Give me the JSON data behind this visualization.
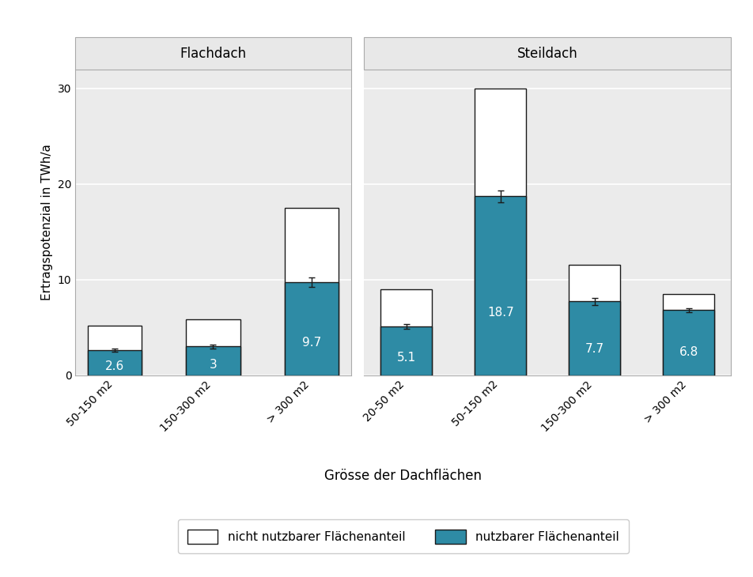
{
  "facets": [
    "Flachdach",
    "Steildach"
  ],
  "flachdach": {
    "categories": [
      "50-150 m2",
      "150-300 m2",
      "> 300 m2"
    ],
    "total": [
      5.2,
      5.8,
      17.5
    ],
    "usable": [
      2.6,
      3.0,
      9.7
    ],
    "error": [
      0.15,
      0.2,
      0.5
    ]
  },
  "steildach": {
    "categories": [
      "20-50 m2",
      "50-150 m2",
      "150-300 m2",
      "> 300 m2"
    ],
    "total": [
      9.0,
      30.0,
      11.5,
      8.5
    ],
    "usable": [
      5.1,
      18.7,
      7.7,
      6.8
    ],
    "error": [
      0.25,
      0.6,
      0.35,
      0.2
    ]
  },
  "bar_color_usable": "#2e8ba5",
  "bar_color_total": "#ffffff",
  "bar_edgecolor": "#1a1a1a",
  "ylabel": "Ertragspotenzial in TWh/a",
  "xlabel": "Grösse der Dachflächen",
  "ylim": [
    0,
    32
  ],
  "yticks": [
    0,
    10,
    20,
    30
  ],
  "legend_labels": [
    "nicht nutzbarer Flächenanteil",
    "nutzbarer Flächenanteil"
  ],
  "facet_bg": "#e8e8e8",
  "plot_bg": "#ebebeb",
  "grid_color": "#ffffff",
  "text_color": "#ffffff",
  "label_fontsize": 11,
  "tick_fontsize": 10,
  "title_fontsize": 12,
  "bar_width": 0.55,
  "error_capsize": 3,
  "error_color": "#1a1a1a",
  "error_linewidth": 1.0
}
